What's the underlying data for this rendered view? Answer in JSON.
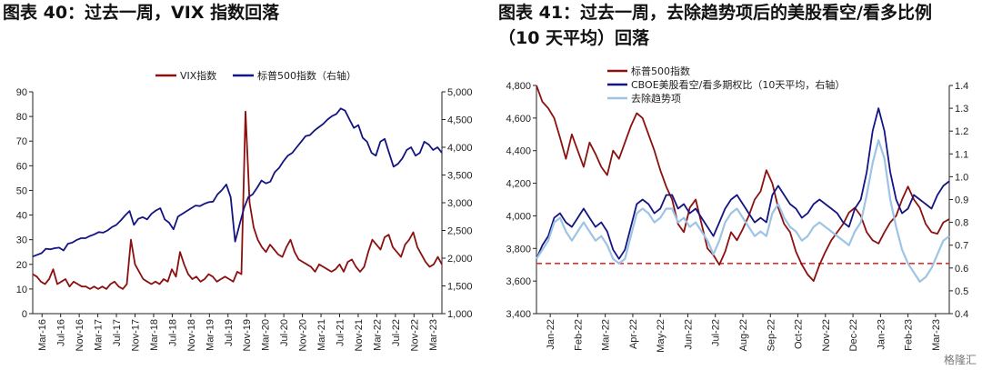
{
  "titles": {
    "left": "图表 40：过去一周，VIX 指数回落",
    "right_line1": "图表 41：过去一周，去除趋势项后的美股看空/看多比例",
    "right_line2": "（10 天平均）回落"
  },
  "watermark": "格隆汇",
  "colors": {
    "vix": "#8B1010",
    "spx": "#141482",
    "ratio": "#141482",
    "detrended": "#9EC4E4",
    "refline": "#E03030",
    "spx_right": "#8B1010"
  },
  "chart_data": [
    {
      "type": "line",
      "title": "",
      "legend_position": "top",
      "x_tick_labels": [
        "Mar-16",
        "Jul-16",
        "Nov-16",
        "Mar-17",
        "Jul-17",
        "Nov-17",
        "Mar-18",
        "Jul-18",
        "Nov-18",
        "Mar-19",
        "Jul-19",
        "Nov-19",
        "Mar-20",
        "Jul-20",
        "Nov-20",
        "Mar-21",
        "Jul-21",
        "Nov-21",
        "Mar-22",
        "Jul-22",
        "Nov-22",
        "Mar-23"
      ],
      "y_left": {
        "range": [
          0,
          90
        ],
        "ticks": [
          "0",
          "10",
          "20",
          "30",
          "40",
          "50",
          "60",
          "70",
          "80",
          "90"
        ]
      },
      "y_right": {
        "range": [
          1000,
          5000
        ],
        "ticks": [
          "1,000",
          "1,500",
          "2,000",
          "2,500",
          "3,000",
          "3,500",
          "4,000",
          "4,500",
          "5,000"
        ]
      },
      "series": [
        {
          "name": "VIX指数",
          "axis": "left",
          "values": [
            16,
            15,
            13,
            12,
            14,
            18,
            12,
            13,
            14,
            11,
            13,
            12,
            11,
            11,
            10,
            11,
            10,
            11,
            10,
            12,
            13,
            11,
            10,
            12,
            30,
            20,
            17,
            14,
            13,
            12,
            13,
            12,
            14,
            13,
            18,
            15,
            25,
            20,
            16,
            14,
            15,
            13,
            14,
            16,
            15,
            13,
            14,
            15,
            14,
            13,
            17,
            16,
            82,
            45,
            35,
            30,
            27,
            25,
            28,
            26,
            24,
            23,
            27,
            30,
            25,
            22,
            21,
            20,
            19,
            17,
            20,
            19,
            18,
            17,
            18,
            20,
            17,
            21,
            22,
            19,
            17,
            19,
            25,
            30,
            28,
            26,
            31,
            32,
            27,
            25,
            23,
            28,
            30,
            33,
            27,
            24,
            21,
            19,
            20,
            23,
            20
          ]
        },
        {
          "name": "标普500指数（右轴）",
          "axis": "right",
          "values": [
            2030,
            2060,
            2090,
            2170,
            2160,
            2180,
            2190,
            2140,
            2260,
            2280,
            2330,
            2360,
            2360,
            2400,
            2430,
            2470,
            2460,
            2500,
            2560,
            2600,
            2680,
            2770,
            2850,
            2600,
            2710,
            2740,
            2700,
            2800,
            2860,
            2900,
            2700,
            2640,
            2520,
            2750,
            2800,
            2850,
            2900,
            2950,
            2940,
            2980,
            3010,
            3020,
            3150,
            3230,
            3330,
            3100,
            2300,
            2600,
            2900,
            3100,
            3150,
            3270,
            3400,
            3350,
            3380,
            3550,
            3630,
            3750,
            3850,
            3900,
            4000,
            4100,
            4200,
            4220,
            4300,
            4360,
            4420,
            4500,
            4560,
            4600,
            4700,
            4660,
            4500,
            4350,
            4400,
            4170,
            4100,
            3900,
            3850,
            4100,
            4150,
            3900,
            3650,
            3700,
            3800,
            3950,
            4000,
            3850,
            3900,
            4100,
            4050,
            3950,
            4000,
            3900
          ]
        }
      ]
    },
    {
      "type": "line",
      "title": "",
      "legend_position": "top-left",
      "x_tick_labels": [
        "Jan-22",
        "Feb-22",
        "Mar-22",
        "Apr-22",
        "May-22",
        "Jun-22",
        "Jul-22",
        "Aug-22",
        "Sep-22",
        "Oct-22",
        "Nov-22",
        "Dec-22",
        "Jan-23",
        "Feb-23",
        "Mar-23"
      ],
      "y_left": {
        "range": [
          3400,
          4800
        ],
        "ticks": [
          "3,400",
          "3,600",
          "3,800",
          "4,000",
          "4,200",
          "4,400",
          "4,600",
          "4,800"
        ]
      },
      "y_right": {
        "range": [
          0.4,
          1.4
        ],
        "ticks": [
          "0.4",
          "0.5",
          "0.6",
          "0.7",
          "0.8",
          "0.9",
          "1.0",
          "1.1",
          "1.2",
          "1.3",
          "1.4"
        ]
      },
      "reference_line": {
        "axis": "right",
        "value": 0.62,
        "style": "dashed"
      },
      "series": [
        {
          "name": "标普500指数",
          "axis": "left",
          "values": [
            4800,
            4700,
            4660,
            4600,
            4480,
            4350,
            4500,
            4400,
            4300,
            4450,
            4380,
            4300,
            4250,
            4400,
            4350,
            4450,
            4550,
            4630,
            4600,
            4500,
            4400,
            4280,
            4180,
            4100,
            3950,
            3900,
            4050,
            4100,
            3950,
            3800,
            3760,
            3700,
            3780,
            3900,
            3850,
            3920,
            4000,
            4100,
            4150,
            4280,
            4200,
            4050,
            3950,
            3900,
            3780,
            3700,
            3640,
            3600,
            3700,
            3780,
            3850,
            3900,
            3950,
            4020,
            4050,
            4000,
            3900,
            3850,
            3830,
            3900,
            3960,
            4000,
            4100,
            4180,
            4100,
            4050,
            3950,
            3900,
            3890,
            3960,
            3980
          ]
        },
        {
          "name": "CBOE美股看空/看多期权比（10天平均，右轴）",
          "axis": "right",
          "values": [
            0.64,
            0.7,
            0.74,
            0.82,
            0.84,
            0.8,
            0.78,
            0.82,
            0.86,
            0.82,
            0.78,
            0.8,
            0.76,
            0.68,
            0.64,
            0.68,
            0.78,
            0.88,
            0.9,
            0.88,
            0.84,
            0.86,
            0.92,
            0.92,
            0.86,
            0.88,
            0.84,
            0.86,
            0.82,
            0.78,
            0.74,
            0.8,
            0.86,
            0.9,
            0.92,
            0.88,
            0.84,
            0.8,
            0.82,
            0.8,
            0.92,
            0.96,
            0.92,
            0.88,
            0.86,
            0.82,
            0.84,
            0.88,
            0.9,
            0.88,
            0.86,
            0.84,
            0.8,
            0.78,
            0.86,
            0.9,
            1.02,
            1.2,
            1.3,
            1.2,
            1.02,
            0.9,
            0.84,
            0.86,
            0.92,
            0.9,
            0.88,
            0.86,
            0.92,
            0.96,
            0.98
          ]
        },
        {
          "name": "去除趋势项",
          "axis": "right",
          "values": [
            0.64,
            0.68,
            0.72,
            0.8,
            0.82,
            0.76,
            0.72,
            0.76,
            0.8,
            0.76,
            0.72,
            0.74,
            0.7,
            0.64,
            0.62,
            0.64,
            0.74,
            0.84,
            0.86,
            0.84,
            0.8,
            0.82,
            0.86,
            0.86,
            0.8,
            0.82,
            0.78,
            0.8,
            0.76,
            0.72,
            0.66,
            0.72,
            0.8,
            0.84,
            0.86,
            0.82,
            0.78,
            0.74,
            0.76,
            0.74,
            0.84,
            0.88,
            0.82,
            0.78,
            0.76,
            0.72,
            0.74,
            0.78,
            0.8,
            0.78,
            0.76,
            0.74,
            0.72,
            0.7,
            0.76,
            0.8,
            0.92,
            1.06,
            1.16,
            1.08,
            0.9,
            0.78,
            0.68,
            0.62,
            0.58,
            0.54,
            0.56,
            0.6,
            0.66,
            0.72,
            0.74
          ]
        }
      ]
    }
  ]
}
